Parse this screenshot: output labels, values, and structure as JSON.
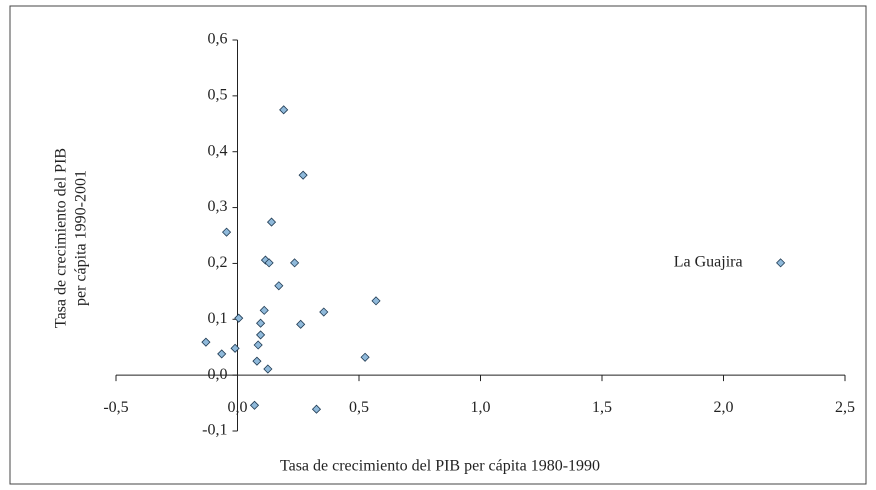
{
  "chart_data": {
    "type": "scatter",
    "xlabel": "Tasa de crecimiento del PIB per cápita 1980-1990",
    "ylabel": [
      "Tasa de crecimiento del PIB",
      "per cápita 1990-2001"
    ],
    "xlim": [
      -0.5,
      2.5
    ],
    "ylim": [
      -0.1,
      0.6
    ],
    "xticks": [
      {
        "value": -0.5,
        "label": "-0,5"
      },
      {
        "value": 0,
        "label": "0,0"
      },
      {
        "value": 0.5,
        "label": "0,5"
      },
      {
        "value": 1,
        "label": "1,0"
      },
      {
        "value": 1.5,
        "label": "1,5"
      },
      {
        "value": 2,
        "label": "2,0"
      },
      {
        "value": 2.5,
        "label": "2,5"
      }
    ],
    "yticks": [
      {
        "value": -0.1,
        "label": "-0,1"
      },
      {
        "value": 0,
        "label": "0,0"
      },
      {
        "value": 0.1,
        "label": "0,1"
      },
      {
        "value": 0.2,
        "label": "0,2"
      },
      {
        "value": 0.3,
        "label": "0,3"
      },
      {
        "value": 0.4,
        "label": "0,4"
      },
      {
        "value": 0.5,
        "label": "0,5"
      },
      {
        "value": 0.6,
        "label": "0,6"
      }
    ],
    "color": "#8fb9da",
    "x": [
      0.19,
      0.27,
      0.14,
      -0.045,
      0.115,
      0.13,
      0.235,
      0.17,
      0.57,
      0.11,
      0.355,
      0.005,
      0.095,
      0.26,
      0.095,
      -0.13,
      0.085,
      -0.01,
      -0.065,
      0.08,
      0.525,
      0.125,
      0.07,
      0.325,
      2.235
    ],
    "y": [
      0.475,
      0.358,
      0.274,
      0.256,
      0.206,
      0.201,
      0.201,
      0.16,
      0.133,
      0.116,
      0.113,
      0.102,
      0.093,
      0.091,
      0.072,
      0.059,
      0.054,
      0.048,
      0.038,
      0.025,
      0.032,
      0.011,
      -0.054,
      -0.061,
      0.201
    ],
    "annotations": [
      {
        "text": "La Guajira",
        "point": 24
      }
    ]
  }
}
